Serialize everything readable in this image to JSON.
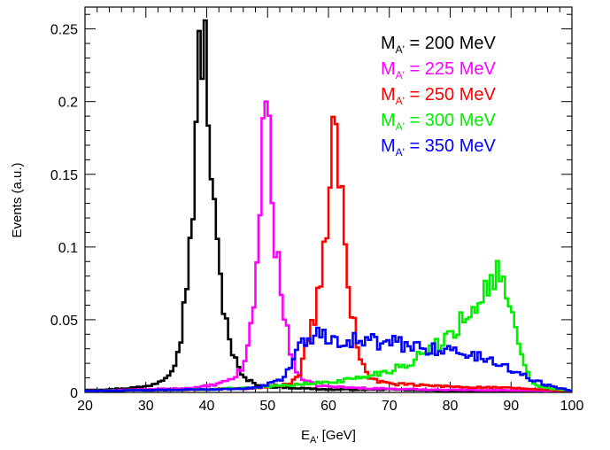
{
  "chart_data": {
    "type": "histogram",
    "xlabel": "E",
    "xlabel_sub": "A'",
    "xlabel_unit": " [GeV]",
    "ylabel": "Events (a.u.)",
    "xlim": [
      20,
      100
    ],
    "ylim": [
      0,
      0.265
    ],
    "xticks": [
      20,
      30,
      40,
      50,
      60,
      70,
      80,
      90,
      100
    ],
    "xtick_labels": [
      "20",
      "30",
      "40",
      "50",
      "60",
      "70",
      "80",
      "90",
      "100"
    ],
    "yticks": [
      0,
      0.05,
      0.1,
      0.15,
      0.2,
      0.25
    ],
    "ytick_labels": [
      "0",
      "0.05",
      "0.1",
      "0.15",
      "0.2",
      "0.25"
    ],
    "grid": false,
    "legend_position": "top-right",
    "bin_width": 0.5,
    "series": [
      {
        "legend_main": "M",
        "legend_sub": "A'",
        "legend_rest": " = 200 MeV",
        "color": "#000000",
        "points": [
          [
            20,
            0.002
          ],
          [
            24,
            0.002
          ],
          [
            27,
            0.003
          ],
          [
            30,
            0.004
          ],
          [
            32,
            0.007
          ],
          [
            33,
            0.01
          ],
          [
            34,
            0.015
          ],
          [
            35,
            0.024
          ],
          [
            36,
            0.045
          ],
          [
            37,
            0.09
          ],
          [
            38,
            0.15
          ],
          [
            38.5,
            0.2
          ],
          [
            39,
            0.24
          ],
          [
            39.5,
            0.25
          ],
          [
            40,
            0.22
          ],
          [
            40.5,
            0.175
          ],
          [
            41,
            0.13
          ],
          [
            42,
            0.085
          ],
          [
            43,
            0.055
          ],
          [
            44,
            0.032
          ],
          [
            45,
            0.018
          ],
          [
            46,
            0.01
          ],
          [
            48,
            0.006
          ],
          [
            50,
            0.004
          ],
          [
            55,
            0.003
          ],
          [
            60,
            0.002
          ],
          [
            70,
            0.002
          ],
          [
            80,
            0.001
          ],
          [
            100,
            0.001
          ]
        ]
      },
      {
        "legend_main": "M",
        "legend_sub": "A'",
        "legend_rest": " = 225 MeV",
        "color": "#ff00ff",
        "points": [
          [
            20,
            0.001
          ],
          [
            30,
            0.002
          ],
          [
            38,
            0.003
          ],
          [
            41,
            0.005
          ],
          [
            43,
            0.007
          ],
          [
            45,
            0.012
          ],
          [
            46,
            0.018
          ],
          [
            47,
            0.035
          ],
          [
            48,
            0.07
          ],
          [
            48.5,
            0.11
          ],
          [
            49,
            0.16
          ],
          [
            49.5,
            0.195
          ],
          [
            50,
            0.195
          ],
          [
            50.5,
            0.165
          ],
          [
            51,
            0.12
          ],
          [
            52,
            0.075
          ],
          [
            53,
            0.045
          ],
          [
            54,
            0.025
          ],
          [
            55,
            0.013
          ],
          [
            56,
            0.008
          ],
          [
            58,
            0.005
          ],
          [
            60,
            0.004
          ],
          [
            65,
            0.003
          ],
          [
            75,
            0.002
          ],
          [
            100,
            0.001
          ]
        ]
      },
      {
        "legend_main": "M",
        "legend_sub": "A'",
        "legend_rest": " = 250 MeV",
        "color": "#ff0000",
        "points": [
          [
            20,
            0.001
          ],
          [
            40,
            0.002
          ],
          [
            48,
            0.003
          ],
          [
            52,
            0.005
          ],
          [
            54,
            0.007
          ],
          [
            55,
            0.01
          ],
          [
            56,
            0.025
          ],
          [
            57,
            0.045
          ],
          [
            58,
            0.055
          ],
          [
            59,
            0.085
          ],
          [
            60,
            0.13
          ],
          [
            60.5,
            0.155
          ],
          [
            61,
            0.185
          ],
          [
            61.5,
            0.175
          ],
          [
            62,
            0.135
          ],
          [
            63,
            0.09
          ],
          [
            64,
            0.05
          ],
          [
            65,
            0.028
          ],
          [
            66,
            0.015
          ],
          [
            67,
            0.009
          ],
          [
            70,
            0.006
          ],
          [
            75,
            0.005
          ],
          [
            80,
            0.004
          ],
          [
            90,
            0.003
          ],
          [
            100,
            0.001
          ]
        ]
      },
      {
        "legend_main": "M",
        "legend_sub": "A'",
        "legend_rest": " = 300 MeV",
        "color": "#00ee00",
        "points": [
          [
            20,
            0.001
          ],
          [
            40,
            0.002
          ],
          [
            50,
            0.004
          ],
          [
            60,
            0.007
          ],
          [
            65,
            0.01
          ],
          [
            70,
            0.015
          ],
          [
            74,
            0.022
          ],
          [
            77,
            0.03
          ],
          [
            80,
            0.04
          ],
          [
            82,
            0.05
          ],
          [
            84,
            0.06
          ],
          [
            86,
            0.07
          ],
          [
            87,
            0.082
          ],
          [
            88,
            0.08
          ],
          [
            89,
            0.072
          ],
          [
            90,
            0.055
          ],
          [
            91,
            0.035
          ],
          [
            92,
            0.02
          ],
          [
            93,
            0.01
          ],
          [
            94,
            0.005
          ],
          [
            96,
            0.003
          ],
          [
            100,
            0.001
          ]
        ]
      },
      {
        "legend_main": "M",
        "legend_sub": "A'",
        "legend_rest": " = 350 MeV",
        "color": "#0000ff",
        "points": [
          [
            20,
            0.001
          ],
          [
            40,
            0.002
          ],
          [
            48,
            0.003
          ],
          [
            52,
            0.008
          ],
          [
            54,
            0.02
          ],
          [
            55,
            0.03
          ],
          [
            56,
            0.036
          ],
          [
            58,
            0.04
          ],
          [
            62,
            0.037
          ],
          [
            66,
            0.035
          ],
          [
            70,
            0.034
          ],
          [
            74,
            0.032
          ],
          [
            78,
            0.03
          ],
          [
            82,
            0.027
          ],
          [
            85,
            0.024
          ],
          [
            88,
            0.02
          ],
          [
            90,
            0.016
          ],
          [
            92,
            0.012
          ],
          [
            94,
            0.008
          ],
          [
            96,
            0.005
          ],
          [
            98,
            0.003
          ],
          [
            100,
            0.001
          ]
        ]
      }
    ]
  }
}
